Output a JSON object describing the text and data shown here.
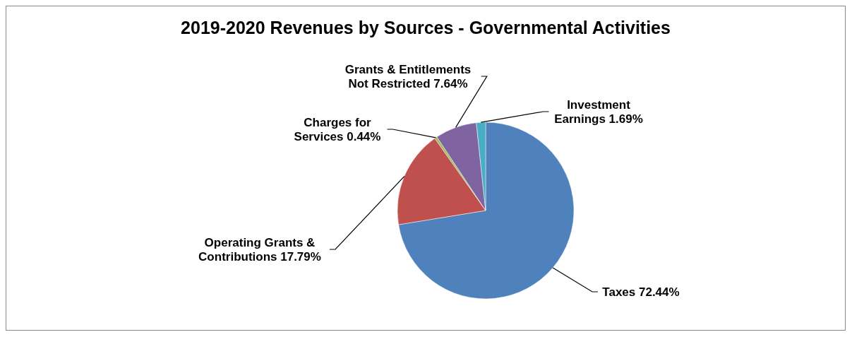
{
  "chart_data": {
    "type": "pie",
    "title": "2019-2020  Revenues by Sources - Governmental Activities",
    "categories": [
      "Taxes",
      "Operating Grants & Contributions",
      "Charges for Services",
      "Grants & Entitlements Not Restricted",
      "Investment Earnings"
    ],
    "values": [
      72.44,
      17.79,
      0.44,
      7.64,
      1.69
    ],
    "value_labels": [
      "72.44%",
      "17.79%",
      "0.44%",
      "7.64%",
      "1.69%"
    ],
    "colors": [
      "#4f81bd",
      "#c0504d",
      "#9bbb59",
      "#8064a2",
      "#4bacc6"
    ]
  }
}
